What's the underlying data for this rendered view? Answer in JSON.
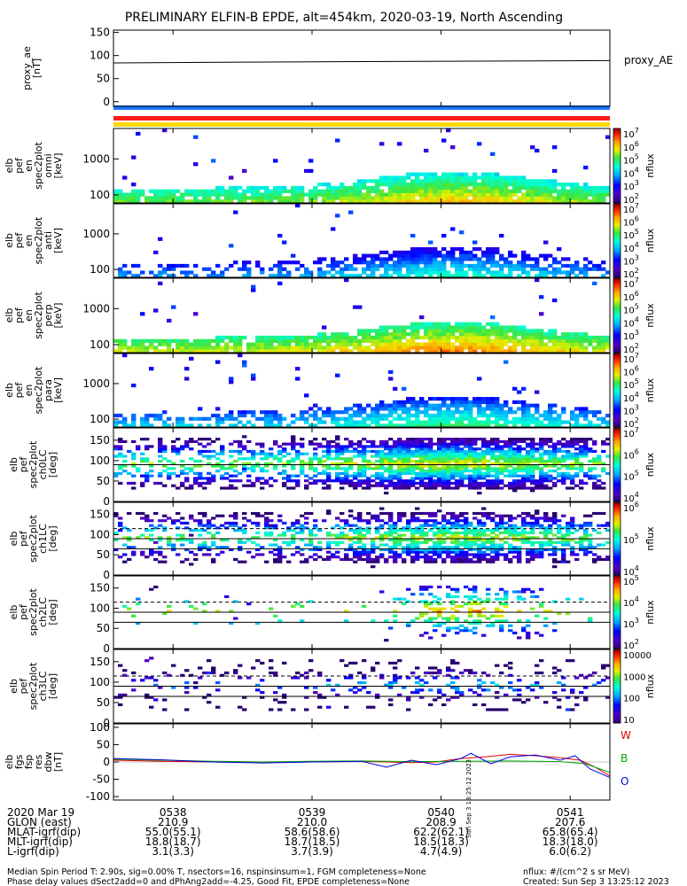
{
  "title": "PRELIMINARY ELFIN-B EPDE, alt=454km, 2020-03-19, North Ascending",
  "colors": {
    "blue_bar": "#1e78ff",
    "red_bar": "#ff1a1a",
    "yellow_bar": "#ffd700",
    "series_red": "#dd0000",
    "series_green": "#00aa00",
    "series_blue": "#0000dd"
  },
  "chart_data": [
    {
      "type": "line",
      "name": "proxy_ae",
      "ylabel_lines": [
        "proxy_ae",
        "[nT]"
      ],
      "ylim": [
        -10,
        155
      ],
      "yticks": [
        "150",
        "100",
        "50",
        "0"
      ],
      "yticks_values": [
        150,
        100,
        50,
        0
      ],
      "right_label": "proxy_AE",
      "series": [
        {
          "x": [
            0,
            0.5,
            1
          ],
          "values": [
            84,
            87,
            89
          ]
        }
      ]
    },
    {
      "type": "heatmap",
      "ylabel_lines": [
        "elb",
        "pef",
        "en",
        "spec2plot",
        "omni",
        "[keV]"
      ],
      "yticks": [
        "1000",
        "100"
      ],
      "log": true,
      "ylim": [
        60,
        7000
      ],
      "colorbar": {
        "label": "nflux",
        "ticks": [
          {
            "b": "10",
            "e": "7"
          },
          {
            "b": "10",
            "e": "6"
          },
          {
            "b": "10",
            "e": "5"
          },
          {
            "b": "10",
            "e": "4"
          },
          {
            "b": "10",
            "e": "3"
          },
          {
            "b": "10",
            "e": "2"
          }
        ],
        "log_range": [
          1,
          7
        ]
      },
      "peak_log": 4.8,
      "spread": 0.5,
      "sparsity": 0.15
    },
    {
      "type": "heatmap",
      "ylabel_lines": [
        "elb",
        "pef",
        "en",
        "spec2plot",
        "anti",
        "[keV]"
      ],
      "yticks": [
        "1000",
        "100"
      ],
      "log": true,
      "ylim": [
        60,
        7000
      ],
      "colorbar": {
        "label": "nflux",
        "ticks": [
          {
            "b": "10",
            "e": "7"
          },
          {
            "b": "10",
            "e": "6"
          },
          {
            "b": "10",
            "e": "5"
          },
          {
            "b": "10",
            "e": "4"
          },
          {
            "b": "10",
            "e": "3"
          },
          {
            "b": "10",
            "e": "2"
          }
        ],
        "log_range": [
          1,
          7
        ]
      },
      "peak_log": 3.2,
      "spread": 0.4,
      "sparsity": 0.6
    },
    {
      "type": "heatmap",
      "ylabel_lines": [
        "elb",
        "pef",
        "en",
        "spec2plot",
        "perp",
        "[keV]"
      ],
      "yticks": [
        "1000",
        "100"
      ],
      "log": true,
      "ylim": [
        60,
        7000
      ],
      "colorbar": {
        "label": "nflux",
        "ticks": [
          {
            "b": "10",
            "e": "7"
          },
          {
            "b": "10",
            "e": "6"
          },
          {
            "b": "10",
            "e": "5"
          },
          {
            "b": "10",
            "e": "4"
          },
          {
            "b": "10",
            "e": "3"
          },
          {
            "b": "10",
            "e": "2"
          }
        ],
        "log_range": [
          1,
          7
        ]
      },
      "peak_log": 5.2,
      "spread": 0.5,
      "sparsity": 0.15
    },
    {
      "type": "heatmap",
      "ylabel_lines": [
        "elb",
        "pef",
        "en",
        "spec2plot",
        "para",
        "[keV]"
      ],
      "yticks": [
        "1000",
        "100"
      ],
      "log": true,
      "ylim": [
        60,
        7000
      ],
      "colorbar": {
        "label": "nflux",
        "ticks": [
          {
            "b": "10",
            "e": "7"
          },
          {
            "b": "10",
            "e": "6"
          },
          {
            "b": "10",
            "e": "5"
          },
          {
            "b": "10",
            "e": "4"
          },
          {
            "b": "10",
            "e": "3"
          },
          {
            "b": "10",
            "e": "2"
          }
        ],
        "log_range": [
          1,
          7
        ]
      },
      "peak_log": 3.6,
      "spread": 0.4,
      "sparsity": 0.5
    },
    {
      "type": "heatmap",
      "ylabel_lines": [
        "elb",
        "pef",
        "spec2plot",
        "ch0LC",
        "[deg]"
      ],
      "yticks": [
        "150",
        "100",
        "50",
        "0"
      ],
      "ylim": [
        0,
        180
      ],
      "colorbar": {
        "label": "nflux",
        "ticks": [
          {
            "b": "10",
            "e": "7"
          },
          {
            "b": "10",
            "e": "6"
          },
          {
            "b": "10",
            "e": "5"
          },
          {
            "b": "10",
            "e": "4"
          }
        ],
        "log_range": [
          3.5,
          7
        ]
      },
      "lines": [
        {
          "y": 90,
          "dash": false
        }
      ],
      "peak_log": 5.6,
      "sparsity": 0.1
    },
    {
      "type": "heatmap",
      "ylabel_lines": [
        "elb",
        "pef",
        "spec2plot",
        "ch1LC",
        "[deg]"
      ],
      "yticks": [
        "150",
        "100",
        "50",
        "0"
      ],
      "ylim": [
        0,
        180
      ],
      "colorbar": {
        "label": "nflux",
        "ticks": [
          {
            "b": "10",
            "e": "6"
          },
          {
            "b": "10",
            "e": "5"
          },
          {
            "b": "10",
            "e": "4"
          }
        ],
        "log_range": [
          3,
          6.5
        ]
      },
      "lines": [
        {
          "y": 115,
          "dash": true
        },
        {
          "y": 90,
          "dash": false
        },
        {
          "y": 65,
          "dash": false
        }
      ],
      "peak_log": 5.0,
      "sparsity": 0.3
    },
    {
      "type": "heatmap",
      "ylabel_lines": [
        "elb",
        "pef",
        "spec2plot",
        "ch2LC",
        "[deg]"
      ],
      "yticks": [
        "150",
        "100",
        "50",
        "0"
      ],
      "ylim": [
        0,
        180
      ],
      "colorbar": {
        "label": "nflux",
        "ticks": [
          {
            "b": "10",
            "e": "5"
          },
          {
            "b": "10",
            "e": "4"
          },
          {
            "b": "10",
            "e": "3"
          },
          {
            "b": "10",
            "e": "2"
          }
        ],
        "log_range": [
          1.5,
          5.5
        ]
      },
      "lines": [
        {
          "y": 115,
          "dash": true
        },
        {
          "y": 90,
          "dash": false
        },
        {
          "y": 65,
          "dash": false
        }
      ],
      "peak_log": 4.3,
      "sparsity": 0.7
    },
    {
      "type": "heatmap",
      "ylabel_lines": [
        "elb",
        "pef",
        "spec2plot",
        "ch3LC",
        "[deg]"
      ],
      "yticks": [
        "150",
        "100",
        "50",
        "0"
      ],
      "ylim": [
        0,
        180
      ],
      "colorbar": {
        "label": "nflux",
        "ticks": [
          {
            "t": "10000"
          },
          {
            "t": "1000"
          },
          {
            "t": "100"
          },
          {
            "t": "10"
          }
        ],
        "log_range": [
          1,
          4.3
        ]
      },
      "lines": [
        {
          "y": 115,
          "dash": true
        },
        {
          "y": 90,
          "dash": false
        },
        {
          "y": 65,
          "dash": false
        }
      ],
      "peak_log": 2.0,
      "sparsity": 0.85
    },
    {
      "type": "line",
      "name": "dbw",
      "ylabel_lines": [
        "elb",
        "fgs",
        "fsp",
        "res",
        "dbw",
        "[nT]"
      ],
      "ylim": [
        -110,
        110
      ],
      "yticks": [
        "100",
        "50",
        "0",
        "-50",
        "-100"
      ],
      "yticks_values": [
        100,
        50,
        0,
        -50,
        -100
      ],
      "legend": [
        "W",
        "B",
        "O"
      ],
      "right_stamp": "Sun Sep 3 13:25:12 2023",
      "series": [
        {
          "name": "W",
          "x": [
            0,
            0.1,
            0.2,
            0.3,
            0.4,
            0.5,
            0.6,
            0.65,
            0.7,
            0.75,
            0.8,
            0.85,
            0.9,
            0.94,
            0.97,
            1.0
          ],
          "values": [
            5,
            2,
            0,
            -1,
            0,
            2,
            -2,
            0,
            10,
            15,
            22,
            18,
            12,
            5,
            -15,
            -40
          ]
        },
        {
          "name": "B",
          "x": [
            0,
            0.1,
            0.2,
            0.3,
            0.4,
            0.5,
            0.6,
            0.7,
            0.8,
            0.9,
            0.95,
            1.0
          ],
          "values": [
            8,
            5,
            2,
            0,
            2,
            3,
            1,
            2,
            3,
            1,
            -5,
            -30
          ]
        },
        {
          "name": "O",
          "x": [
            0,
            0.1,
            0.2,
            0.3,
            0.4,
            0.5,
            0.55,
            0.6,
            0.65,
            0.7,
            0.72,
            0.76,
            0.8,
            0.85,
            0.9,
            0.93,
            0.96,
            1.0
          ],
          "values": [
            10,
            6,
            0,
            -3,
            0,
            2,
            -15,
            5,
            -8,
            10,
            25,
            -5,
            15,
            20,
            5,
            18,
            -20,
            -45
          ]
        }
      ]
    }
  ],
  "axis": {
    "row_labels": [
      "2020 Mar 19",
      "GLON (east)",
      "MLAT-igrf(dip)",
      "MLT-igrf(dip)",
      "L-igrf(dip)"
    ],
    "columns": [
      {
        "x": 0.12,
        "vals": [
          "0538",
          "210.9",
          "55.0(55.1)",
          "18.8(18.7)",
          "3.1(3.3)"
        ]
      },
      {
        "x": 0.4,
        "vals": [
          "0539",
          "210.0",
          "58.6(58.6)",
          "18.7(18.5)",
          "3.7(3.9)"
        ]
      },
      {
        "x": 0.66,
        "vals": [
          "0540",
          "208.9",
          "62.2(62.1)",
          "18.5(18.3)",
          "4.7(4.9)"
        ]
      },
      {
        "x": 0.92,
        "vals": [
          "0541",
          "207.6",
          "65.8(65.4)",
          "18.3(18.0)",
          "6.0(6.2)"
        ]
      }
    ]
  },
  "footer": {
    "line1": "Median Spin Period T: 2.90s, sig=0.00% T, nsectors=16, nspinsinsum=1, FGM completeness=None",
    "line2": "Phase delay values dSect2add=0 and dPhAng2add=-4.25, Good Fit, EPDE completeness=None",
    "right1": "nflux: #/(cm^2 s sr MeV)",
    "right2": "Created: Sun Sep  3 13:25:12 2023"
  }
}
